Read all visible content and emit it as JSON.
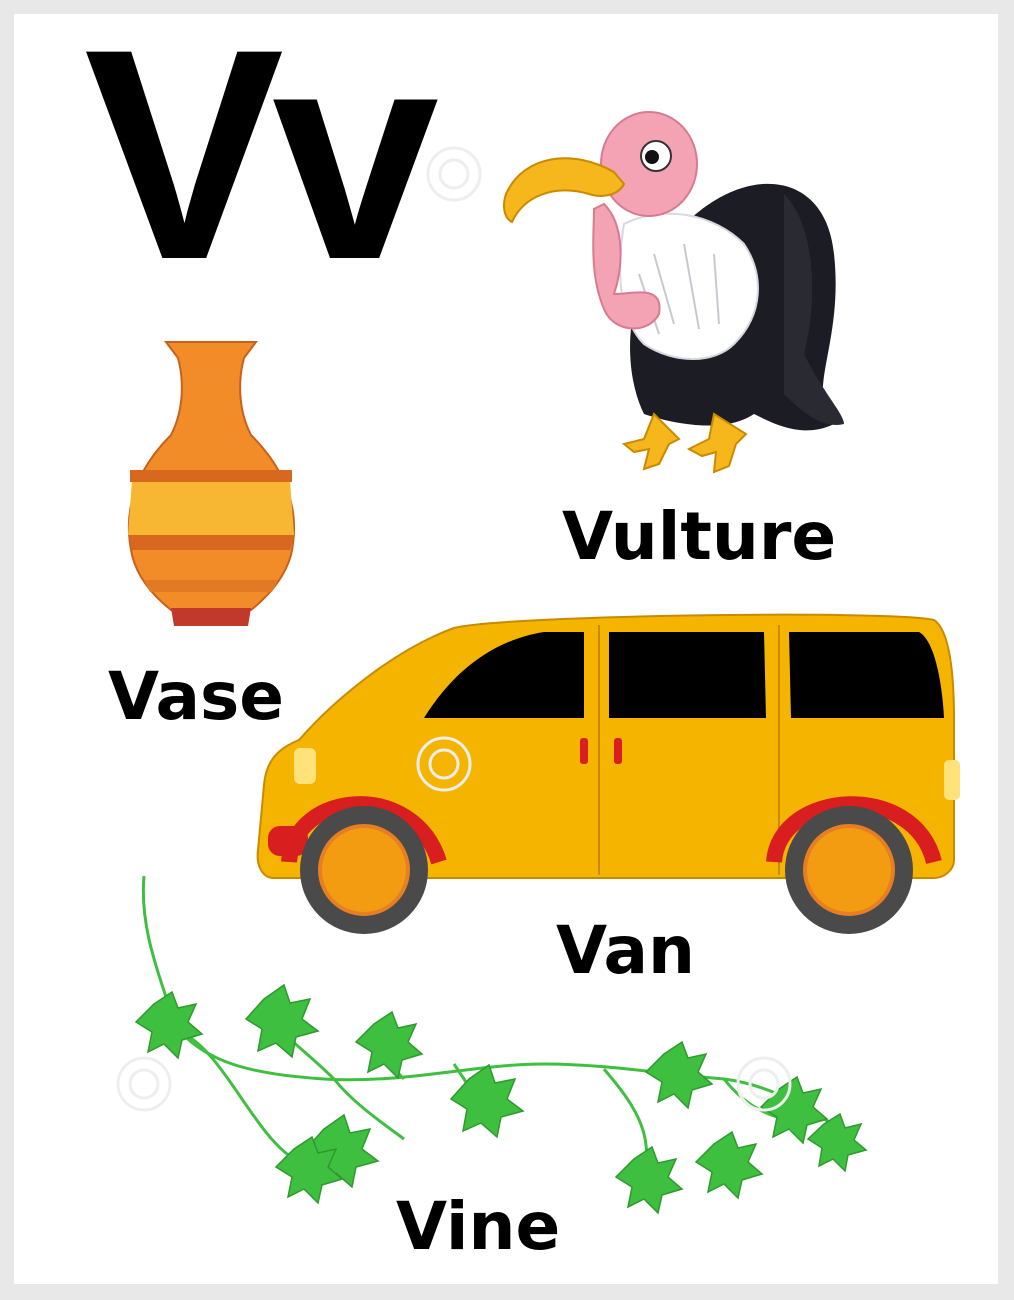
{
  "card": {
    "letter": "Vv",
    "words": {
      "vulture": "Vulture",
      "vase": "Vase",
      "van": "Van",
      "vine": "Vine"
    }
  },
  "illustrations": [
    "vulture",
    "vase",
    "van",
    "vine"
  ],
  "colors": {
    "vase_orange": "#f28c28",
    "vase_yellow": "#f7b733",
    "vase_red": "#c0392b",
    "van_yellow": "#f5b400",
    "van_red": "#d81e1e",
    "vine_green": "#3fbf3f",
    "vulture_pink": "#f4a3b5",
    "vulture_beak": "#f5b71c",
    "vulture_black": "#1c1c24"
  }
}
